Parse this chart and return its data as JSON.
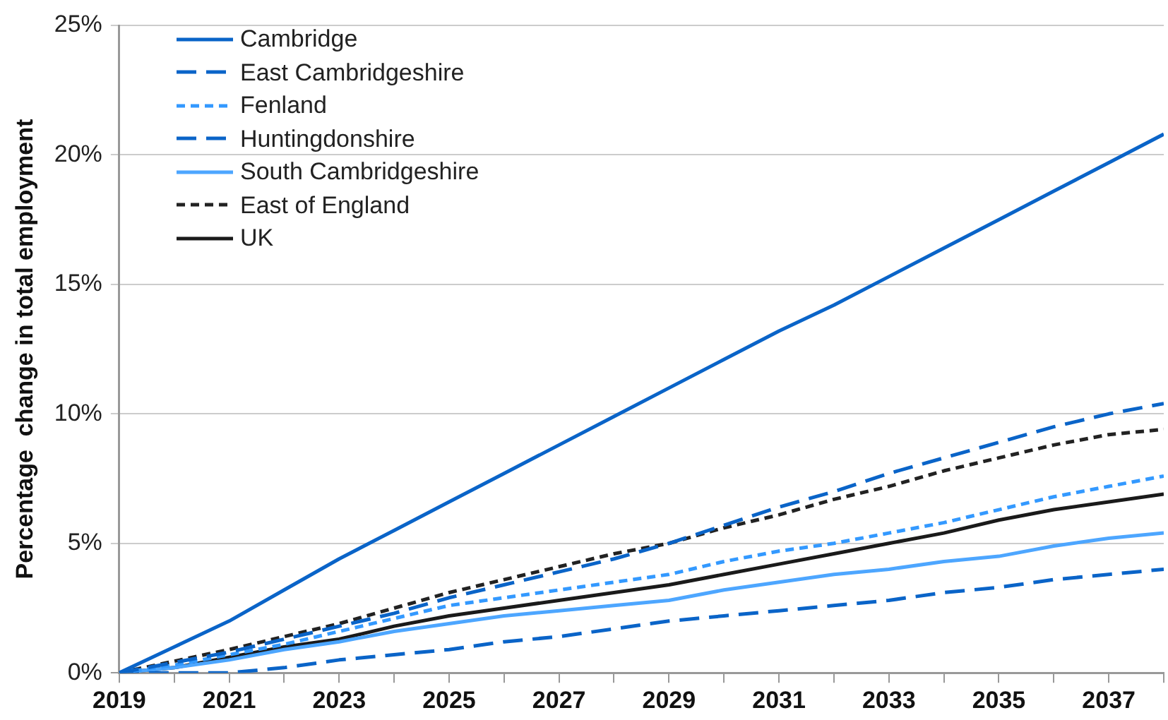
{
  "chart_data": {
    "type": "line",
    "ylabel": "Percentage  change in total employment",
    "x": [
      2019,
      2020,
      2021,
      2022,
      2023,
      2024,
      2025,
      2026,
      2027,
      2028,
      2029,
      2030,
      2031,
      2032,
      2033,
      2034,
      2035,
      2036,
      2037,
      2038
    ],
    "series": [
      {
        "name": "Cambridge",
        "color": "#0a64c8",
        "line_style": "solid",
        "values": [
          0,
          1.0,
          2.0,
          3.2,
          4.4,
          5.5,
          6.6,
          7.7,
          8.8,
          9.9,
          11.0,
          12.1,
          13.2,
          14.2,
          15.3,
          16.4,
          17.5,
          18.6,
          19.7,
          20.8
        ]
      },
      {
        "name": "East Cambridgeshire",
        "color": "#0a64c8",
        "line_style": "dashed",
        "values": [
          0,
          0.4,
          0.8,
          1.3,
          1.8,
          2.3,
          2.9,
          3.4,
          3.9,
          4.4,
          5.0,
          5.7,
          6.4,
          7.0,
          7.7,
          8.3,
          8.9,
          9.5,
          10.0,
          10.4
        ]
      },
      {
        "name": "Fenland",
        "color": "#3399ff",
        "line_style": "dotted",
        "values": [
          0,
          0.3,
          0.7,
          1.1,
          1.6,
          2.1,
          2.6,
          2.9,
          3.2,
          3.5,
          3.8,
          4.3,
          4.7,
          5.0,
          5.4,
          5.8,
          6.3,
          6.8,
          7.2,
          7.6
        ]
      },
      {
        "name": "Huntingdonshire",
        "color": "#0a64c8",
        "line_style": "dashed",
        "values": [
          0,
          0,
          0,
          0.2,
          0.5,
          0.7,
          0.9,
          1.2,
          1.4,
          1.7,
          2.0,
          2.2,
          2.4,
          2.6,
          2.8,
          3.1,
          3.3,
          3.6,
          3.8,
          4.0
        ]
      },
      {
        "name": "South Cambridgeshire",
        "color": "#4da6ff",
        "line_style": "solid",
        "values": [
          0,
          0.2,
          0.5,
          0.9,
          1.2,
          1.6,
          1.9,
          2.2,
          2.4,
          2.6,
          2.8,
          3.2,
          3.5,
          3.8,
          4.0,
          4.3,
          4.5,
          4.9,
          5.2,
          5.4
        ]
      },
      {
        "name": "East of England",
        "color": "#222222",
        "line_style": "dotted",
        "values": [
          0,
          0.45,
          0.9,
          1.4,
          1.9,
          2.5,
          3.1,
          3.6,
          4.1,
          4.6,
          5.0,
          5.6,
          6.1,
          6.7,
          7.2,
          7.8,
          8.3,
          8.8,
          9.2,
          9.4
        ]
      },
      {
        "name": "UK",
        "color": "#1a1a1a",
        "line_style": "solid",
        "values": [
          0,
          0.2,
          0.6,
          1.0,
          1.3,
          1.8,
          2.2,
          2.5,
          2.8,
          3.1,
          3.4,
          3.8,
          4.2,
          4.6,
          5.0,
          5.4,
          5.9,
          6.3,
          6.6,
          6.9
        ]
      }
    ],
    "xlim": [
      2019,
      2038
    ],
    "xticks": [
      2019,
      {
        "value": 2020,
        "label": null
      },
      2021,
      {
        "value": 2022,
        "label": null
      },
      2023,
      {
        "value": 2024,
        "label": null
      },
      2025,
      {
        "value": 2026,
        "label": null
      },
      2027,
      {
        "value": 2028,
        "label": null
      },
      2029,
      {
        "value": 2030,
        "label": null
      },
      2031,
      {
        "value": 2032,
        "label": null
      },
      2033,
      {
        "value": 2034,
        "label": null
      },
      2035,
      {
        "value": 2036,
        "label": null
      },
      2037,
      {
        "value": 2038,
        "label": null
      }
    ],
    "ylim": [
      0,
      25
    ],
    "yticks": [
      {
        "value": 0,
        "label": "0%"
      },
      {
        "value": 5,
        "label": "5%"
      },
      {
        "value": 10,
        "label": "10%"
      },
      {
        "value": 15,
        "label": "15%"
      },
      {
        "value": 20,
        "label": "20%"
      },
      {
        "value": 25,
        "label": "25%"
      }
    ],
    "grid": "y",
    "legend": "top left",
    "marker": "none"
  }
}
